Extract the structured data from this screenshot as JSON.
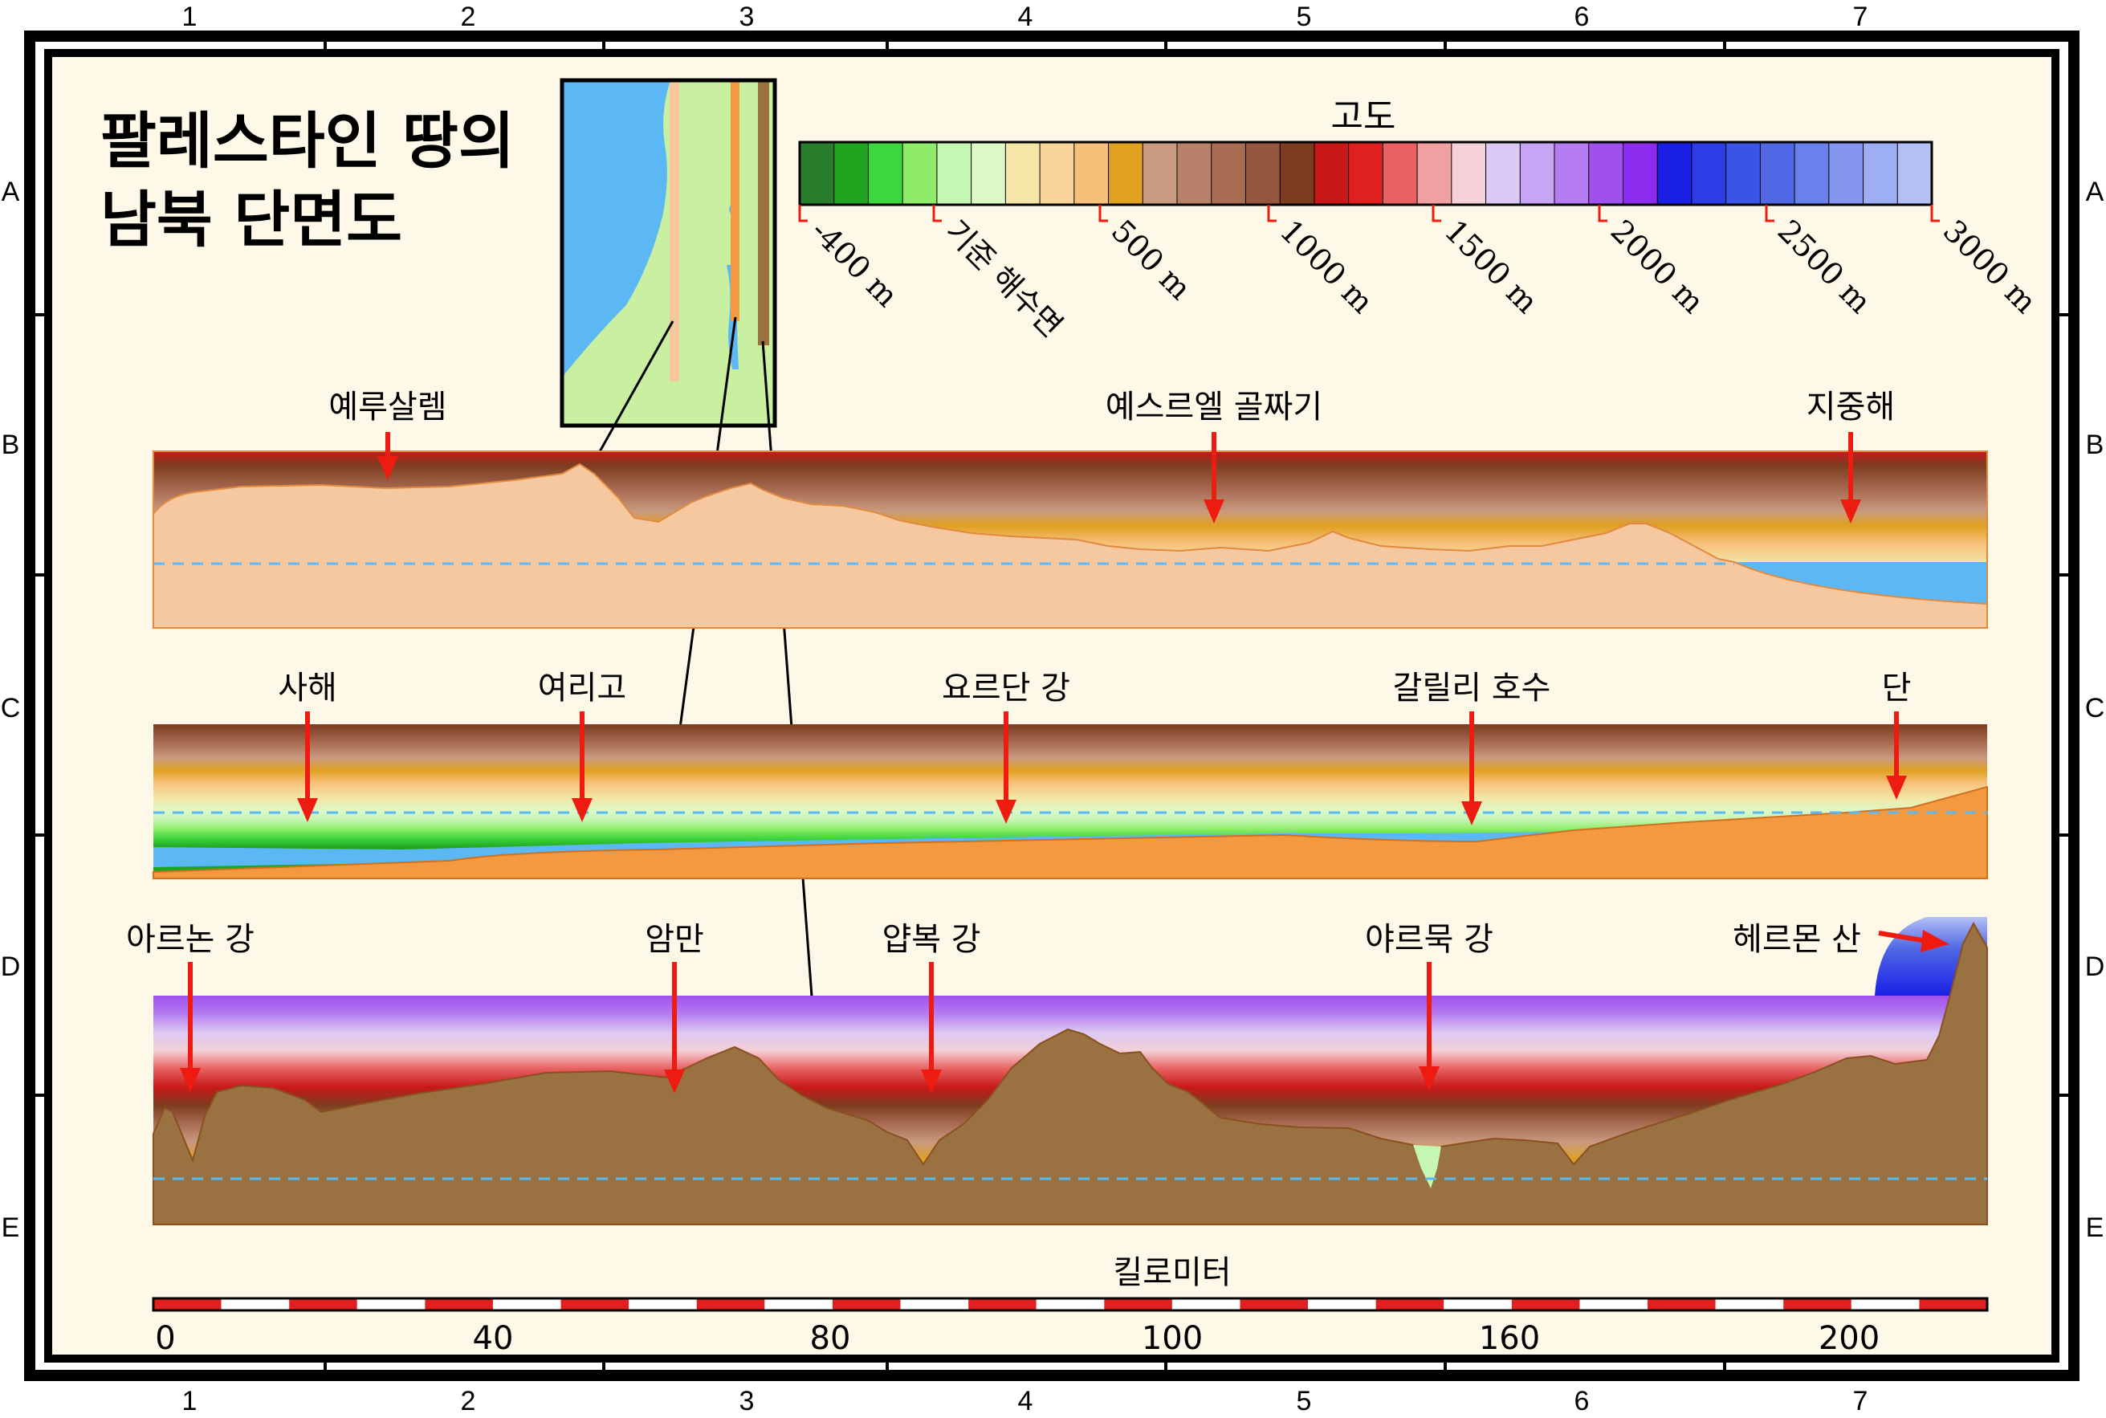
{
  "title": {
    "line1": "팔레스타인 땅의",
    "line2": "남북 단면도"
  },
  "grid": {
    "columns": [
      "1",
      "2",
      "3",
      "4",
      "5",
      "6",
      "7"
    ],
    "rows": [
      "A",
      "B",
      "C",
      "D",
      "E"
    ]
  },
  "legend": {
    "title": "고도",
    "colors": [
      "#2a7d2a",
      "#1fa51f",
      "#3ed63e",
      "#8fec6a",
      "#c6f6b3",
      "#ddf7c6",
      "#f4e6a6",
      "#f8d49a",
      "#f7c07a",
      "#e0a020",
      "#c89a80",
      "#b8826a",
      "#a86c52",
      "#94563e",
      "#7c3c20",
      "#c81818",
      "#e02020",
      "#e86060",
      "#f0a0a0",
      "#f4d0d8",
      "#dcc8f4",
      "#c8a4f4",
      "#b47cf0",
      "#a050ee",
      "#8c2cee",
      "#1a20e6",
      "#2c3ce6",
      "#3c54e6",
      "#5068e6",
      "#6a80ea",
      "#8496ee",
      "#9eaef2",
      "#b4c0f4"
    ],
    "tick_labels": [
      "-400 m",
      "기준 해수면",
      "500 m",
      "1000 m",
      "1500 m",
      "2000 m",
      "2500 m",
      "3000 m"
    ]
  },
  "profiles": {
    "top": {
      "labels": [
        "예루살렘",
        "예스르엘 골짜기",
        "지중해"
      ]
    },
    "middle": {
      "labels": [
        "사해",
        "여리고",
        "요르단 강",
        "갈릴리 호수",
        "단"
      ]
    },
    "bottom": {
      "labels": [
        "아르논 강",
        "암만",
        "얍복 강",
        "야르묵 강",
        "헤르몬 산"
      ]
    }
  },
  "scale": {
    "title": "킬로미터",
    "labels": [
      "0",
      "40",
      "80",
      "100",
      "160",
      "200"
    ]
  },
  "colors": {
    "background": "#fdf8e8",
    "sea": "#5bb8f5",
    "land_inset": "#c8f0a0",
    "profile_top": "#f5c8a0",
    "profile_middle": "#f39a40",
    "profile_bottom": "#9a7140",
    "arrow": "#ee1c10",
    "scale_red": "#e02020"
  }
}
